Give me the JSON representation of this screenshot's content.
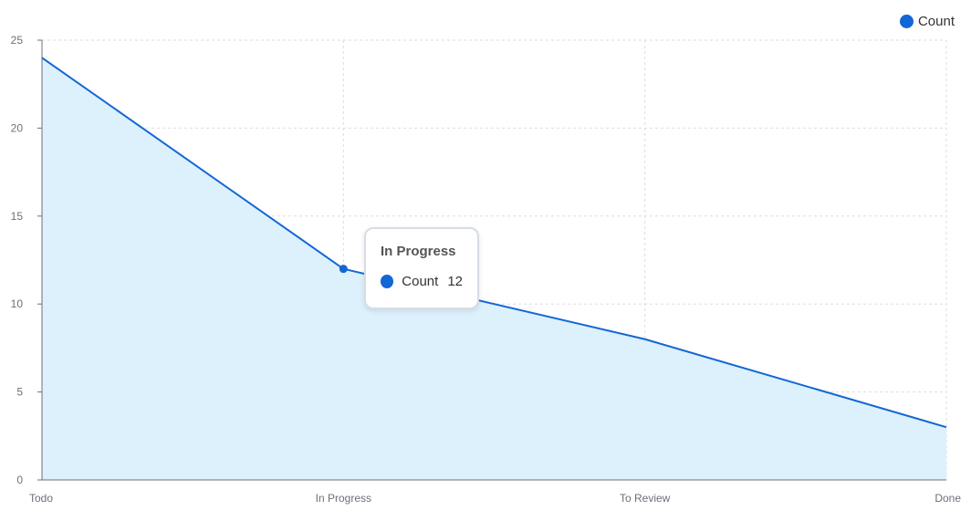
{
  "chart_data": {
    "type": "area",
    "categories": [
      "Todo",
      "In Progress",
      "To Review",
      "Done"
    ],
    "series": [
      {
        "name": "Count",
        "values": [
          24,
          12,
          8,
          3
        ]
      }
    ],
    "ylim": [
      0,
      25
    ],
    "yticks": [
      0,
      5,
      10,
      15,
      20,
      25
    ],
    "grid": true,
    "legend_position": "top-right",
    "colors": {
      "line": "#1366d6",
      "fill": "#dcf1fc",
      "grid": "#dddddd",
      "axis": "#6e7079",
      "tick_label": "#6e7079"
    },
    "tooltip": {
      "title": "In Progress",
      "series_name": "Count",
      "value": "12"
    }
  }
}
